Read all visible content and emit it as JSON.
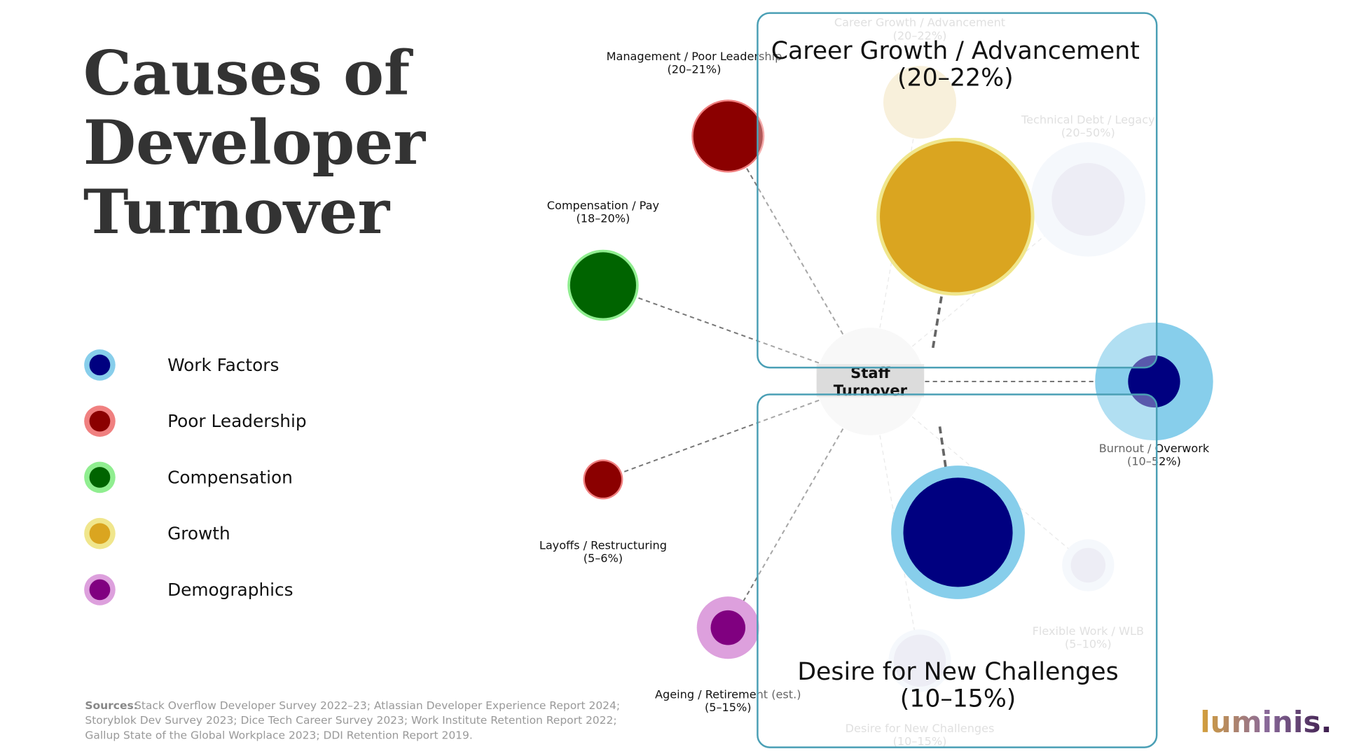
{
  "header": {
    "title_lines": [
      "Causes of",
      "Developer",
      "Turnover"
    ]
  },
  "legend": [
    {
      "label": "Work Factors",
      "color": "#000080",
      "ring": "#87ceeb"
    },
    {
      "label": "Poor Leadership",
      "color": "#8b0000",
      "ring": "#f08080"
    },
    {
      "label": "Compensation",
      "color": "#006400",
      "ring": "#90ee90"
    },
    {
      "label": "Growth",
      "color": "#daa520",
      "ring": "#f0e68c"
    },
    {
      "label": "Demographics",
      "color": "#800080",
      "ring": "#dda0dd"
    }
  ],
  "center": {
    "lines": [
      "Staff",
      "Turnover"
    ]
  },
  "nodes": [
    {
      "name": "Management / Poor Leadership",
      "range": "(20–21%)"
    },
    {
      "name": "Compensation / Pay",
      "range": "(18–20%)"
    },
    {
      "name": "Layoffs / Restructuring",
      "range": "(5–6%)"
    },
    {
      "name": "Ageing / Retirement (est.)",
      "range": "(5–15%)"
    },
    {
      "name": "Burnout / Overwork",
      "range": "(10–52%)"
    },
    {
      "name": "Career Growth / Advancement",
      "range": "(20–22%)"
    },
    {
      "name": "Technical Debt / Legacy",
      "range": "(20–50%)"
    },
    {
      "name": "Desire for New Challenges",
      "range": "(10–15%)"
    },
    {
      "name": "Flexible Work / WLB",
      "range": "(5–10%)"
    }
  ],
  "highlights": [
    {
      "title": "Career Growth / Advancement",
      "range": "(20–22%)"
    },
    {
      "title": "Desire for New Challenges",
      "range": "(10–15%)"
    }
  ],
  "sources": {
    "label": "Sources:",
    "lines": [
      "Stack Overflow Developer Survey 2022–23; Atlassian Developer Experience Report 2024;",
      "Storyblok Dev Survey 2023; Dice Tech Career Survey 2023; Work Institute Retention Report 2022;",
      "Gallup State of the Global Workplace 2023; DDI Retention Report 2019."
    ]
  },
  "logo": "luminis."
}
